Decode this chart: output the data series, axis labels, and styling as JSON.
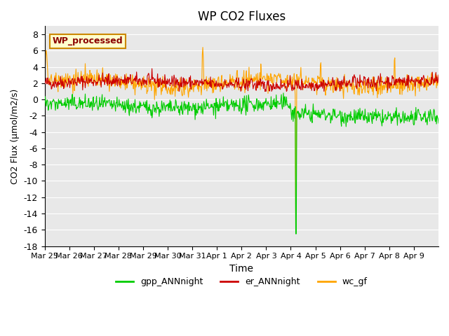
{
  "title": "WP CO2 Fluxes",
  "xlabel": "Time",
  "ylabel": "CO2 Flux (μmol/m2/s)",
  "ylim": [
    -18,
    9
  ],
  "yticks": [
    -18,
    -16,
    -14,
    -12,
    -10,
    -8,
    -6,
    -4,
    -2,
    0,
    2,
    4,
    6,
    8
  ],
  "bg_color": "#e8e8e8",
  "legend_label": "WP_processed",
  "legend_text_color": "#8b0000",
  "legend_box_color": "#ffffcc",
  "legend_box_edge": "#cc8800",
  "line_colors": {
    "gpp": "#00cc00",
    "er": "#cc0000",
    "wc": "#ffa500"
  },
  "x_tick_labels": [
    "Mar 25",
    "Mar 26",
    "Mar 27",
    "Mar 28",
    "Mar 29",
    "Mar 30",
    "Mar 31",
    "Apr 1",
    "Apr 2",
    "Apr 3",
    "Apr 4",
    "Apr 5",
    "Apr 6",
    "Apr 7",
    "Apr 8",
    "Apr 9"
  ],
  "seed": 42
}
